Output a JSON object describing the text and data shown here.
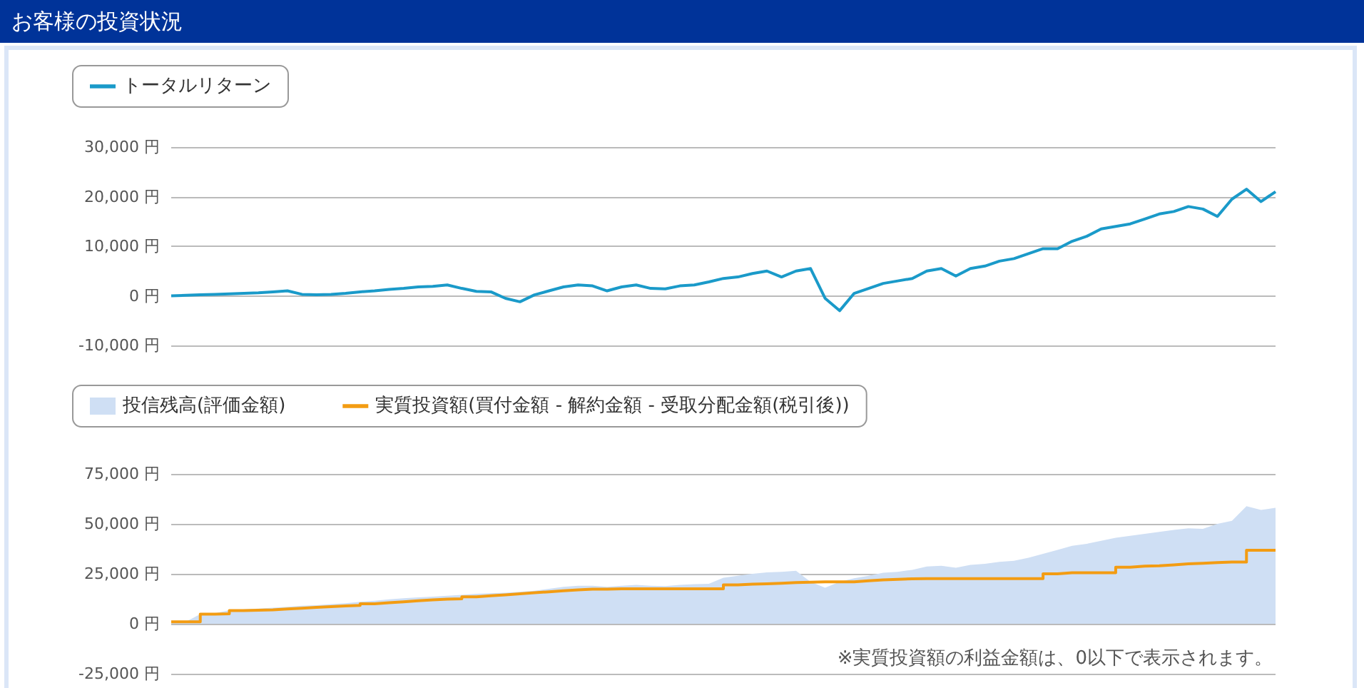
{
  "chart_data": [
    {
      "type": "line",
      "title": "お客様の投資状況",
      "categories": [
        null,
        null,
        null,
        null,
        null,
        null,
        null,
        null,
        null,
        null,
        null,
        null,
        null,
        null,
        null,
        null,
        null,
        null,
        null,
        null,
        null,
        null,
        null,
        null,
        null,
        null,
        null,
        null,
        null,
        null,
        null,
        null,
        null,
        null,
        null,
        null,
        null,
        null,
        null,
        null,
        null,
        null,
        null,
        null,
        null,
        null,
        null,
        null,
        null,
        null,
        null,
        null,
        null,
        null,
        null,
        null,
        null,
        null,
        null,
        null,
        null,
        null,
        null,
        null,
        null,
        null,
        null,
        null,
        null,
        null,
        null,
        null,
        null,
        null,
        null,
        null,
        null
      ],
      "series": [
        {
          "name": "トータルリターン",
          "color": "#1a9ac9",
          "values": [
            0,
            100,
            200,
            300,
            400,
            500,
            600,
            800,
            1000,
            300,
            200,
            300,
            500,
            800,
            1000,
            1300,
            1500,
            1800,
            1900,
            2200,
            1500,
            900,
            800,
            -500,
            -1200,
            200,
            1000,
            1800,
            2200,
            2000,
            1000,
            1800,
            2200,
            1500,
            1400,
            2000,
            2200,
            2800,
            3500,
            3800,
            4500,
            5000,
            3800,
            5000,
            5500,
            -500,
            -3000,
            500,
            1500,
            2500,
            3000,
            3500,
            5000,
            5500,
            4000,
            5500,
            6000,
            7000,
            7500,
            8500,
            9500,
            9500,
            11000,
            12000,
            13500,
            14000,
            14500,
            15500,
            16500,
            17000,
            18000,
            17500,
            16000,
            19500,
            21500,
            19000,
            21000
          ]
        }
      ],
      "ylim": [
        -10000,
        30000
      ],
      "yticks": [
        {
          "value": -10000,
          "label": "-10,000 円"
        },
        {
          "value": 0,
          "label": "0 円"
        },
        {
          "value": 10000,
          "label": "10,000 円"
        },
        {
          "value": 20000,
          "label": "20,000 円"
        },
        {
          "value": 30000,
          "label": "30,000 円"
        }
      ],
      "grid": "y",
      "legend": "top left",
      "tick_labels": "y",
      "marker": "none"
    },
    {
      "type": "line",
      "categories": [
        null,
        null,
        null,
        null,
        null,
        null,
        null,
        null,
        null,
        null,
        null,
        null,
        null,
        null,
        null,
        null,
        null,
        null,
        null,
        null,
        null,
        null,
        null,
        null,
        null,
        null,
        null,
        null,
        null,
        null,
        null,
        null,
        null,
        null,
        null,
        null,
        null,
        null,
        null,
        null,
        null,
        null,
        null,
        null,
        null,
        null,
        null,
        null,
        null,
        null,
        null,
        null,
        null,
        null,
        null,
        null,
        null,
        null,
        null,
        null,
        null,
        null,
        null,
        null,
        null,
        null,
        null,
        null,
        null,
        null,
        null,
        null,
        null,
        null,
        null,
        null,
        null
      ],
      "series": [
        {
          "name": "投信残高(評価金額)",
          "type": "area",
          "color": "#cfdff4",
          "values": [
            1000,
            1000,
            4800,
            5200,
            6800,
            7200,
            7600,
            8000,
            8500,
            9000,
            9300,
            9800,
            10300,
            11000,
            11500,
            12200,
            12800,
            13200,
            13600,
            14000,
            14500,
            15000,
            15300,
            15500,
            16000,
            16500,
            17500,
            18500,
            19000,
            19000,
            18500,
            19000,
            19500,
            19000,
            18800,
            19500,
            19800,
            20000,
            23000,
            24000,
            25000,
            25700,
            26000,
            26500,
            21000,
            18000,
            21000,
            22800,
            24000,
            25500,
            26000,
            27000,
            28700,
            29000,
            28000,
            29500,
            30000,
            31000,
            31500,
            33000,
            35000,
            37000,
            39000,
            40000,
            41500,
            43000,
            44000,
            45000,
            46000,
            47000,
            47800,
            47500,
            50000,
            51500,
            58800,
            57000,
            58000
          ]
        },
        {
          "name": "実質投資額(買付金額 - 解約金額 - 受取分配金額(税引後))",
          "type": "step",
          "color": "#f39c12",
          "values": [
            1000,
            1000,
            4800,
            5000,
            6600,
            6800,
            7000,
            7400,
            7800,
            8200,
            8600,
            8900,
            9200,
            10000,
            10500,
            11000,
            11500,
            12000,
            12300,
            12500,
            13500,
            14000,
            14500,
            15000,
            15500,
            16000,
            16500,
            17000,
            17300,
            17300,
            17500,
            17500,
            17500,
            17500,
            17500,
            17500,
            17500,
            17500,
            19500,
            19800,
            20000,
            20300,
            20600,
            20800,
            21000,
            21000,
            21000,
            21500,
            22000,
            22200,
            22500,
            22600,
            22600,
            22600,
            22600,
            22600,
            22600,
            22600,
            22600,
            22600,
            25000,
            25500,
            25500,
            25500,
            25500,
            28300,
            28800,
            29000,
            29500,
            30000,
            30300,
            30600,
            30900,
            30900,
            36800,
            36800,
            36800
          ]
        }
      ],
      "ylim": [
        -25000,
        75000
      ],
      "yticks": [
        {
          "value": -25000,
          "label": "-25,000 円"
        },
        {
          "value": 0,
          "label": "0 円"
        },
        {
          "value": 25000,
          "label": "25,000 円"
        },
        {
          "value": 50000,
          "label": "50,000 円"
        },
        {
          "value": 75000,
          "label": "75,000 円"
        }
      ],
      "annotations": [
        "※実質投資額の利益金額は、0以下で表示されます。"
      ],
      "grid": "y",
      "legend": "top left",
      "tick_labels": "y",
      "marker": "none"
    }
  ]
}
